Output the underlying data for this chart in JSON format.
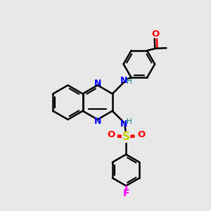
{
  "background_color": "#e8e8e8",
  "bond_color": "#000000",
  "n_color": "#0000ff",
  "o_color": "#ff0000",
  "s_color": "#cccc00",
  "f_color": "#ff00ff",
  "h_color": "#008080",
  "line_width": 1.8,
  "figsize": [
    3.0,
    3.0
  ],
  "dpi": 100,
  "xlim": [
    0,
    10
  ],
  "ylim": [
    0,
    10
  ]
}
